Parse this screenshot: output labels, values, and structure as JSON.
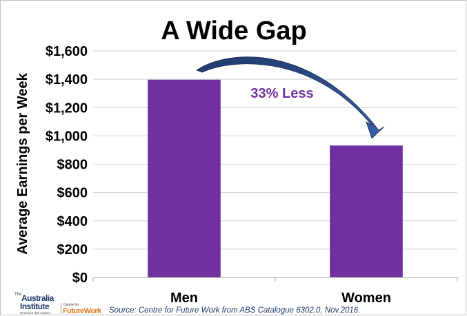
{
  "chart_data": {
    "type": "bar",
    "title": "A Wide Gap",
    "ylabel": "Average Earnings per Week",
    "xlabel": "",
    "categories": [
      "Men",
      "Women"
    ],
    "values": [
      1397,
      932
    ],
    "ylim": [
      0,
      1600
    ],
    "yticks": [
      "$0",
      "$200",
      "$400",
      "$600",
      "$800",
      "$1,000",
      "$1,200",
      "$1,400",
      "$1,600"
    ],
    "ytick_values": [
      0,
      200,
      400,
      600,
      800,
      1000,
      1200,
      1400,
      1600
    ],
    "grid": true,
    "bar_color": "#7030a0",
    "annotation": {
      "text": "33% Less",
      "color": "#7030a0",
      "arrow_color": "#1f3a6b"
    }
  },
  "source": "Source: Centre for Future Work from ABS Catalogue 6302.0, Nov.2016.",
  "logo": {
    "the": "The",
    "australia": "Australia",
    "institute": "Institute",
    "tagline": "Research that matters.",
    "centre_for": "Centre for",
    "future_work": "FutureWork"
  }
}
